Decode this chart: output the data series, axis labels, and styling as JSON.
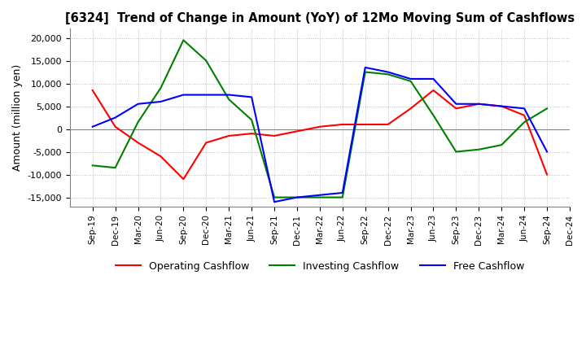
{
  "title": "[6324]  Trend of Change in Amount (YoY) of 12Mo Moving Sum of Cashflows",
  "ylabel": "Amount (million yen)",
  "ylim": [
    -17000,
    22000
  ],
  "yticks": [
    -15000,
    -10000,
    -5000,
    0,
    5000,
    10000,
    15000,
    20000
  ],
  "x_labels": [
    "Sep-19",
    "Dec-19",
    "Mar-20",
    "Jun-20",
    "Sep-20",
    "Dec-20",
    "Mar-21",
    "Jun-21",
    "Sep-21",
    "Dec-21",
    "Mar-22",
    "Jun-22",
    "Sep-22",
    "Dec-22",
    "Mar-23",
    "Jun-23",
    "Sep-23",
    "Dec-23",
    "Mar-24",
    "Jun-24",
    "Sep-24",
    "Dec-24"
  ],
  "operating": [
    8500,
    500,
    -3000,
    -6000,
    -11000,
    -3000,
    -1500,
    -1000,
    -1500,
    -500,
    500,
    1000,
    1000,
    1000,
    4500,
    8500,
    4500,
    5500,
    5000,
    3000,
    -10000,
    null
  ],
  "investing": [
    -8000,
    -8500,
    1500,
    9000,
    19500,
    15000,
    6500,
    2000,
    -15000,
    -15000,
    -15000,
    -15000,
    12500,
    12000,
    10500,
    3000,
    -5000,
    -4500,
    -3500,
    1500,
    4500,
    null
  ],
  "free": [
    500,
    2500,
    5500,
    6000,
    7500,
    7500,
    7500,
    7000,
    -16000,
    -15000,
    -14500,
    -14000,
    13500,
    12500,
    11000,
    11000,
    5500,
    5500,
    5000,
    4500,
    -5000,
    null
  ],
  "op_color": "#ff0000",
  "inv_color": "#008000",
  "free_color": "#0000ff",
  "background_color": "#ffffff",
  "grid_color": "#b0b0b0",
  "grid_style": "dotted"
}
